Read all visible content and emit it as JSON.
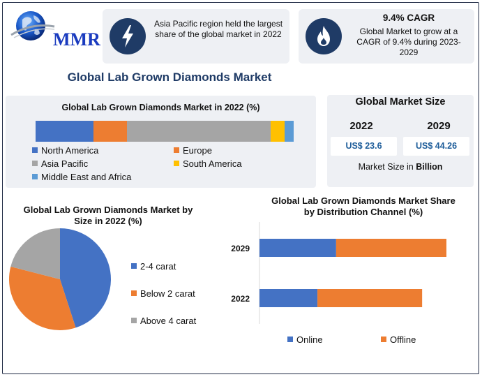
{
  "brand": {
    "name": "MMR"
  },
  "highlights": [
    {
      "icon": "lightning-icon",
      "title": "",
      "text": "Asia Pacific region held the largest share of the global market in 2022"
    },
    {
      "icon": "flame-icon",
      "title": "9.4% CAGR",
      "text": "Global Market to grow at a CAGR of 9.4% during 2023-2029"
    }
  ],
  "main_title": "Global Lab Grown Diamonds Market",
  "market_size": {
    "title": "Global Market Size",
    "years": [
      "2022",
      "2029"
    ],
    "values": [
      "US$ 23.6",
      "US$ 44.26"
    ],
    "unit_prefix": "Market Size in ",
    "unit_bold": "Billion"
  },
  "colors": {
    "blue": "#4472c4",
    "orange": "#ed7d31",
    "gray": "#a5a5a5",
    "yellow": "#ffc000",
    "lightblue": "#5b9bd5",
    "navy": "#1f3b66"
  },
  "chart_data": [
    {
      "type": "bar",
      "orientation": "horizontal-stacked-100",
      "title": "Global Lab Grown Diamonds Market in 2022 (%)",
      "categories": [
        "2022"
      ],
      "series": [
        {
          "name": "North America",
          "values": [
            22.5
          ],
          "color": "#4472c4"
        },
        {
          "name": "Europe",
          "values": [
            13.0
          ],
          "color": "#ed7d31"
        },
        {
          "name": "Asia Pacific",
          "values": [
            55.5
          ],
          "color": "#a5a5a5"
        },
        {
          "name": "South America",
          "values": [
            5.5
          ],
          "color": "#ffc000"
        },
        {
          "name": "Middle East and Africa",
          "values": [
            3.5
          ],
          "color": "#5b9bd5"
        }
      ],
      "legend_position": "bottom",
      "grid": false
    },
    {
      "type": "pie",
      "title": "Global Lab Grown Diamonds Market by Size in 2022 (%)",
      "labels": [
        "2-4 carat",
        "Below 2 carat",
        "Above 4 carat"
      ],
      "values": [
        45,
        34,
        21
      ],
      "colors": [
        "#4472c4",
        "#ed7d31",
        "#a5a5a5"
      ],
      "legend_position": "right"
    },
    {
      "type": "bar",
      "orientation": "horizontal-stacked",
      "title": "Global Lab Grown Diamonds Market Share by Distribution Channel (%)",
      "categories": [
        "2029",
        "2022"
      ],
      "series": [
        {
          "name": "Online",
          "values": [
            41,
            31
          ],
          "color": "#4472c4"
        },
        {
          "name": "Offline",
          "values": [
            59,
            56
          ],
          "color": "#ed7d31"
        }
      ],
      "xlim": [
        0,
        100
      ],
      "legend_position": "bottom",
      "grid": false
    }
  ]
}
